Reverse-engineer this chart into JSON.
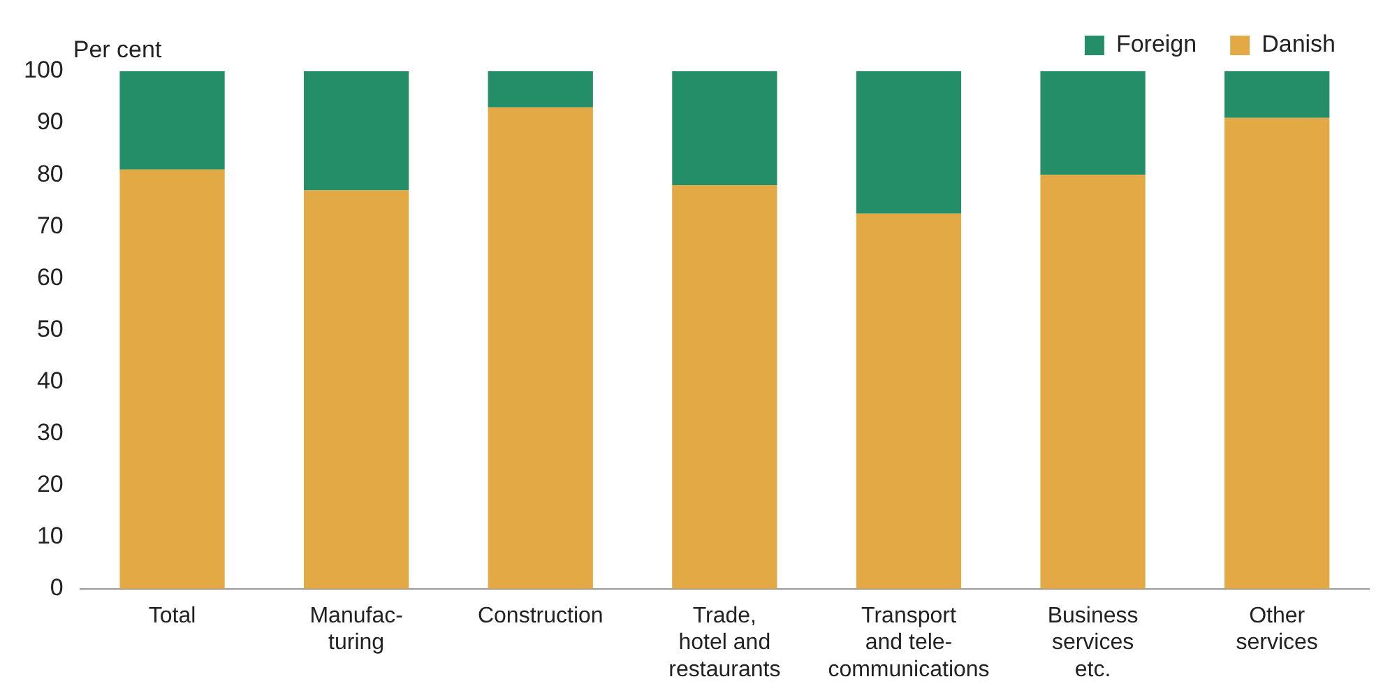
{
  "chart_data": {
    "type": "bar",
    "stacked": true,
    "ylabel": "Per cent",
    "categories": [
      "Total",
      "Manufac-\nturing",
      "Construction",
      "Trade,\nhotel and\nrestaurants",
      "Transport\nand tele-\ncommunications",
      "Business\nservices\netc.",
      "Other\nservices"
    ],
    "series": [
      {
        "name": "Danish",
        "color": "#e3a945",
        "values": [
          81,
          77,
          93,
          78,
          72.5,
          80,
          91
        ]
      },
      {
        "name": "Foreign",
        "color": "#238e68",
        "values": [
          19,
          23,
          7,
          22,
          27.5,
          20,
          9
        ]
      }
    ],
    "ylim": [
      0,
      100
    ],
    "yticks": [
      0,
      10,
      20,
      30,
      40,
      50,
      60,
      70,
      80,
      90,
      100
    ],
    "grid": false,
    "legend": "top right"
  }
}
